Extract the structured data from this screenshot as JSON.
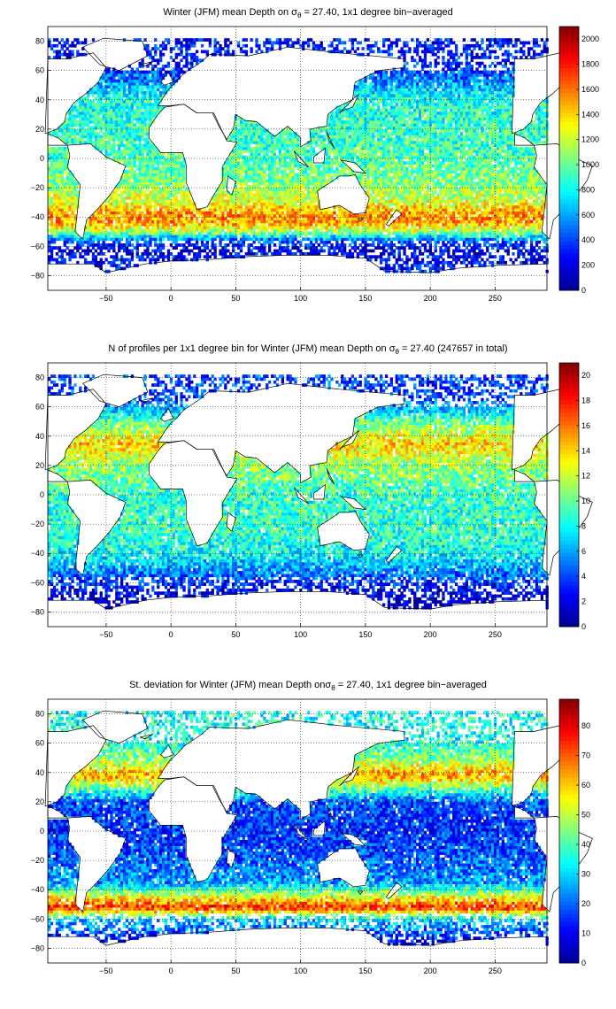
{
  "colormap": [
    "#00008F",
    "#0000FF",
    "#0080FF",
    "#00FFFF",
    "#80FF80",
    "#FFFF00",
    "#FF8000",
    "#FF0000",
    "#800000"
  ],
  "land_color": "#FFFFFF",
  "panels": [
    {
      "title_pre": "Winter (JFM) mean Depth on σ",
      "title_sub": "θ",
      "title_post": " = 27.40, 1x1 degree bin−averaged",
      "chart_data": {
        "type": "heatmap",
        "xlim": [
          -95,
          290
        ],
        "ylim": [
          -90,
          90
        ],
        "x_ticks": [
          -50,
          0,
          50,
          100,
          150,
          200,
          250
        ],
        "y_ticks": [
          80,
          60,
          40,
          20,
          0,
          -20,
          -40,
          -60,
          -80
        ],
        "x_tick_labels": [
          "−50",
          "0",
          "50",
          "100",
          "150",
          "200",
          "250"
        ],
        "y_tick_labels": [
          "80",
          "60",
          "40",
          "20",
          "0",
          "−20",
          "−40",
          "−60",
          "−80"
        ],
        "grid": true,
        "grid_style": "dotted",
        "colorbar": {
          "range": [
            0,
            2100
          ],
          "ticks": [
            0,
            200,
            400,
            600,
            800,
            1000,
            1200,
            1400,
            1600,
            1800,
            2000
          ],
          "tick_labels": [
            "0",
            "200",
            "400",
            "600",
            "800",
            "1000",
            "1200",
            "1400",
            "1600",
            "1800",
            "2000"
          ]
        },
        "field": [
          {
            "lat": -75,
            "value": 300
          },
          {
            "lat": -62,
            "value": 200
          },
          {
            "lat": -56,
            "value": 450
          },
          {
            "lat": -50,
            "value": 1100
          },
          {
            "lat": -44,
            "value": 1500
          },
          {
            "lat": -38,
            "value": 1550
          },
          {
            "lat": -30,
            "value": 1250
          },
          {
            "lat": -15,
            "value": 1050
          },
          {
            "lat": 0,
            "value": 950
          },
          {
            "lat": 20,
            "value": 900
          },
          {
            "lat": 40,
            "value": 850
          },
          {
            "lat": 55,
            "value": 500
          },
          {
            "lat": 65,
            "value": 300
          }
        ]
      }
    },
    {
      "title_pre": "N of profiles per 1x1 degree bin for Winter (JFM) mean Depth on σ",
      "title_sub": "θ",
      "title_post": " = 27.40 (247657 in total)",
      "chart_data": {
        "type": "heatmap",
        "xlim": [
          -95,
          290
        ],
        "ylim": [
          -90,
          90
        ],
        "x_ticks": [
          -50,
          0,
          50,
          100,
          150,
          200,
          250
        ],
        "y_ticks": [
          80,
          60,
          40,
          20,
          0,
          -20,
          -40,
          -60,
          -80
        ],
        "x_tick_labels": [
          "−50",
          "0",
          "50",
          "100",
          "150",
          "200",
          "250"
        ],
        "y_tick_labels": [
          "80",
          "60",
          "40",
          "20",
          "0",
          "−20",
          "−40",
          "−60",
          "−80"
        ],
        "grid": true,
        "grid_style": "dotted",
        "colorbar": {
          "range": [
            0,
            21
          ],
          "ticks": [
            0,
            2,
            4,
            6,
            8,
            10,
            12,
            14,
            16,
            18,
            20
          ],
          "tick_labels": [
            "0",
            "2",
            "4",
            "6",
            "8",
            "10",
            "12",
            "14",
            "16",
            "18",
            "20"
          ]
        },
        "field": [
          {
            "lat": -75,
            "value": 1
          },
          {
            "lat": -62,
            "value": 3
          },
          {
            "lat": -50,
            "value": 6
          },
          {
            "lat": -40,
            "value": 8
          },
          {
            "lat": -25,
            "value": 9
          },
          {
            "lat": -10,
            "value": 9
          },
          {
            "lat": 0,
            "value": 9
          },
          {
            "lat": 20,
            "value": 11
          },
          {
            "lat": 35,
            "value": 14
          },
          {
            "lat": 50,
            "value": 10
          },
          {
            "lat": 65,
            "value": 4
          }
        ]
      }
    },
    {
      "title_pre": "St. deviation for Winter (JFM) mean Depth onσ",
      "title_sub": "θ",
      "title_post": " = 27.40, 1x1 degree bin−averaged",
      "chart_data": {
        "type": "heatmap",
        "xlim": [
          -95,
          290
        ],
        "ylim": [
          -90,
          90
        ],
        "x_ticks": [
          -50,
          0,
          50,
          100,
          150,
          200,
          250
        ],
        "y_ticks": [
          80,
          60,
          40,
          20,
          0,
          -20,
          -40,
          -60,
          -80
        ],
        "x_tick_labels": [
          "−50",
          "0",
          "50",
          "100",
          "150",
          "200",
          "250"
        ],
        "y_tick_labels": [
          "80",
          "60",
          "40",
          "20",
          "0",
          "−20",
          "−40",
          "−60",
          "−80"
        ],
        "grid": true,
        "grid_style": "dotted",
        "colorbar": {
          "range": [
            0,
            89
          ],
          "ticks": [
            0,
            10,
            20,
            30,
            40,
            50,
            60,
            70,
            80
          ],
          "tick_labels": [
            "0",
            "10",
            "20",
            "30",
            "40",
            "50",
            "60",
            "70",
            "80"
          ]
        },
        "field": [
          {
            "lat": -75,
            "value": 10
          },
          {
            "lat": -60,
            "value": 30
          },
          {
            "lat": -52,
            "value": 75
          },
          {
            "lat": -45,
            "value": 55
          },
          {
            "lat": -35,
            "value": 25
          },
          {
            "lat": -15,
            "value": 18
          },
          {
            "lat": 0,
            "value": 15
          },
          {
            "lat": 20,
            "value": 18
          },
          {
            "lat": 38,
            "value": 65
          },
          {
            "lat": 50,
            "value": 45
          },
          {
            "lat": 62,
            "value": 35
          }
        ]
      }
    }
  ]
}
